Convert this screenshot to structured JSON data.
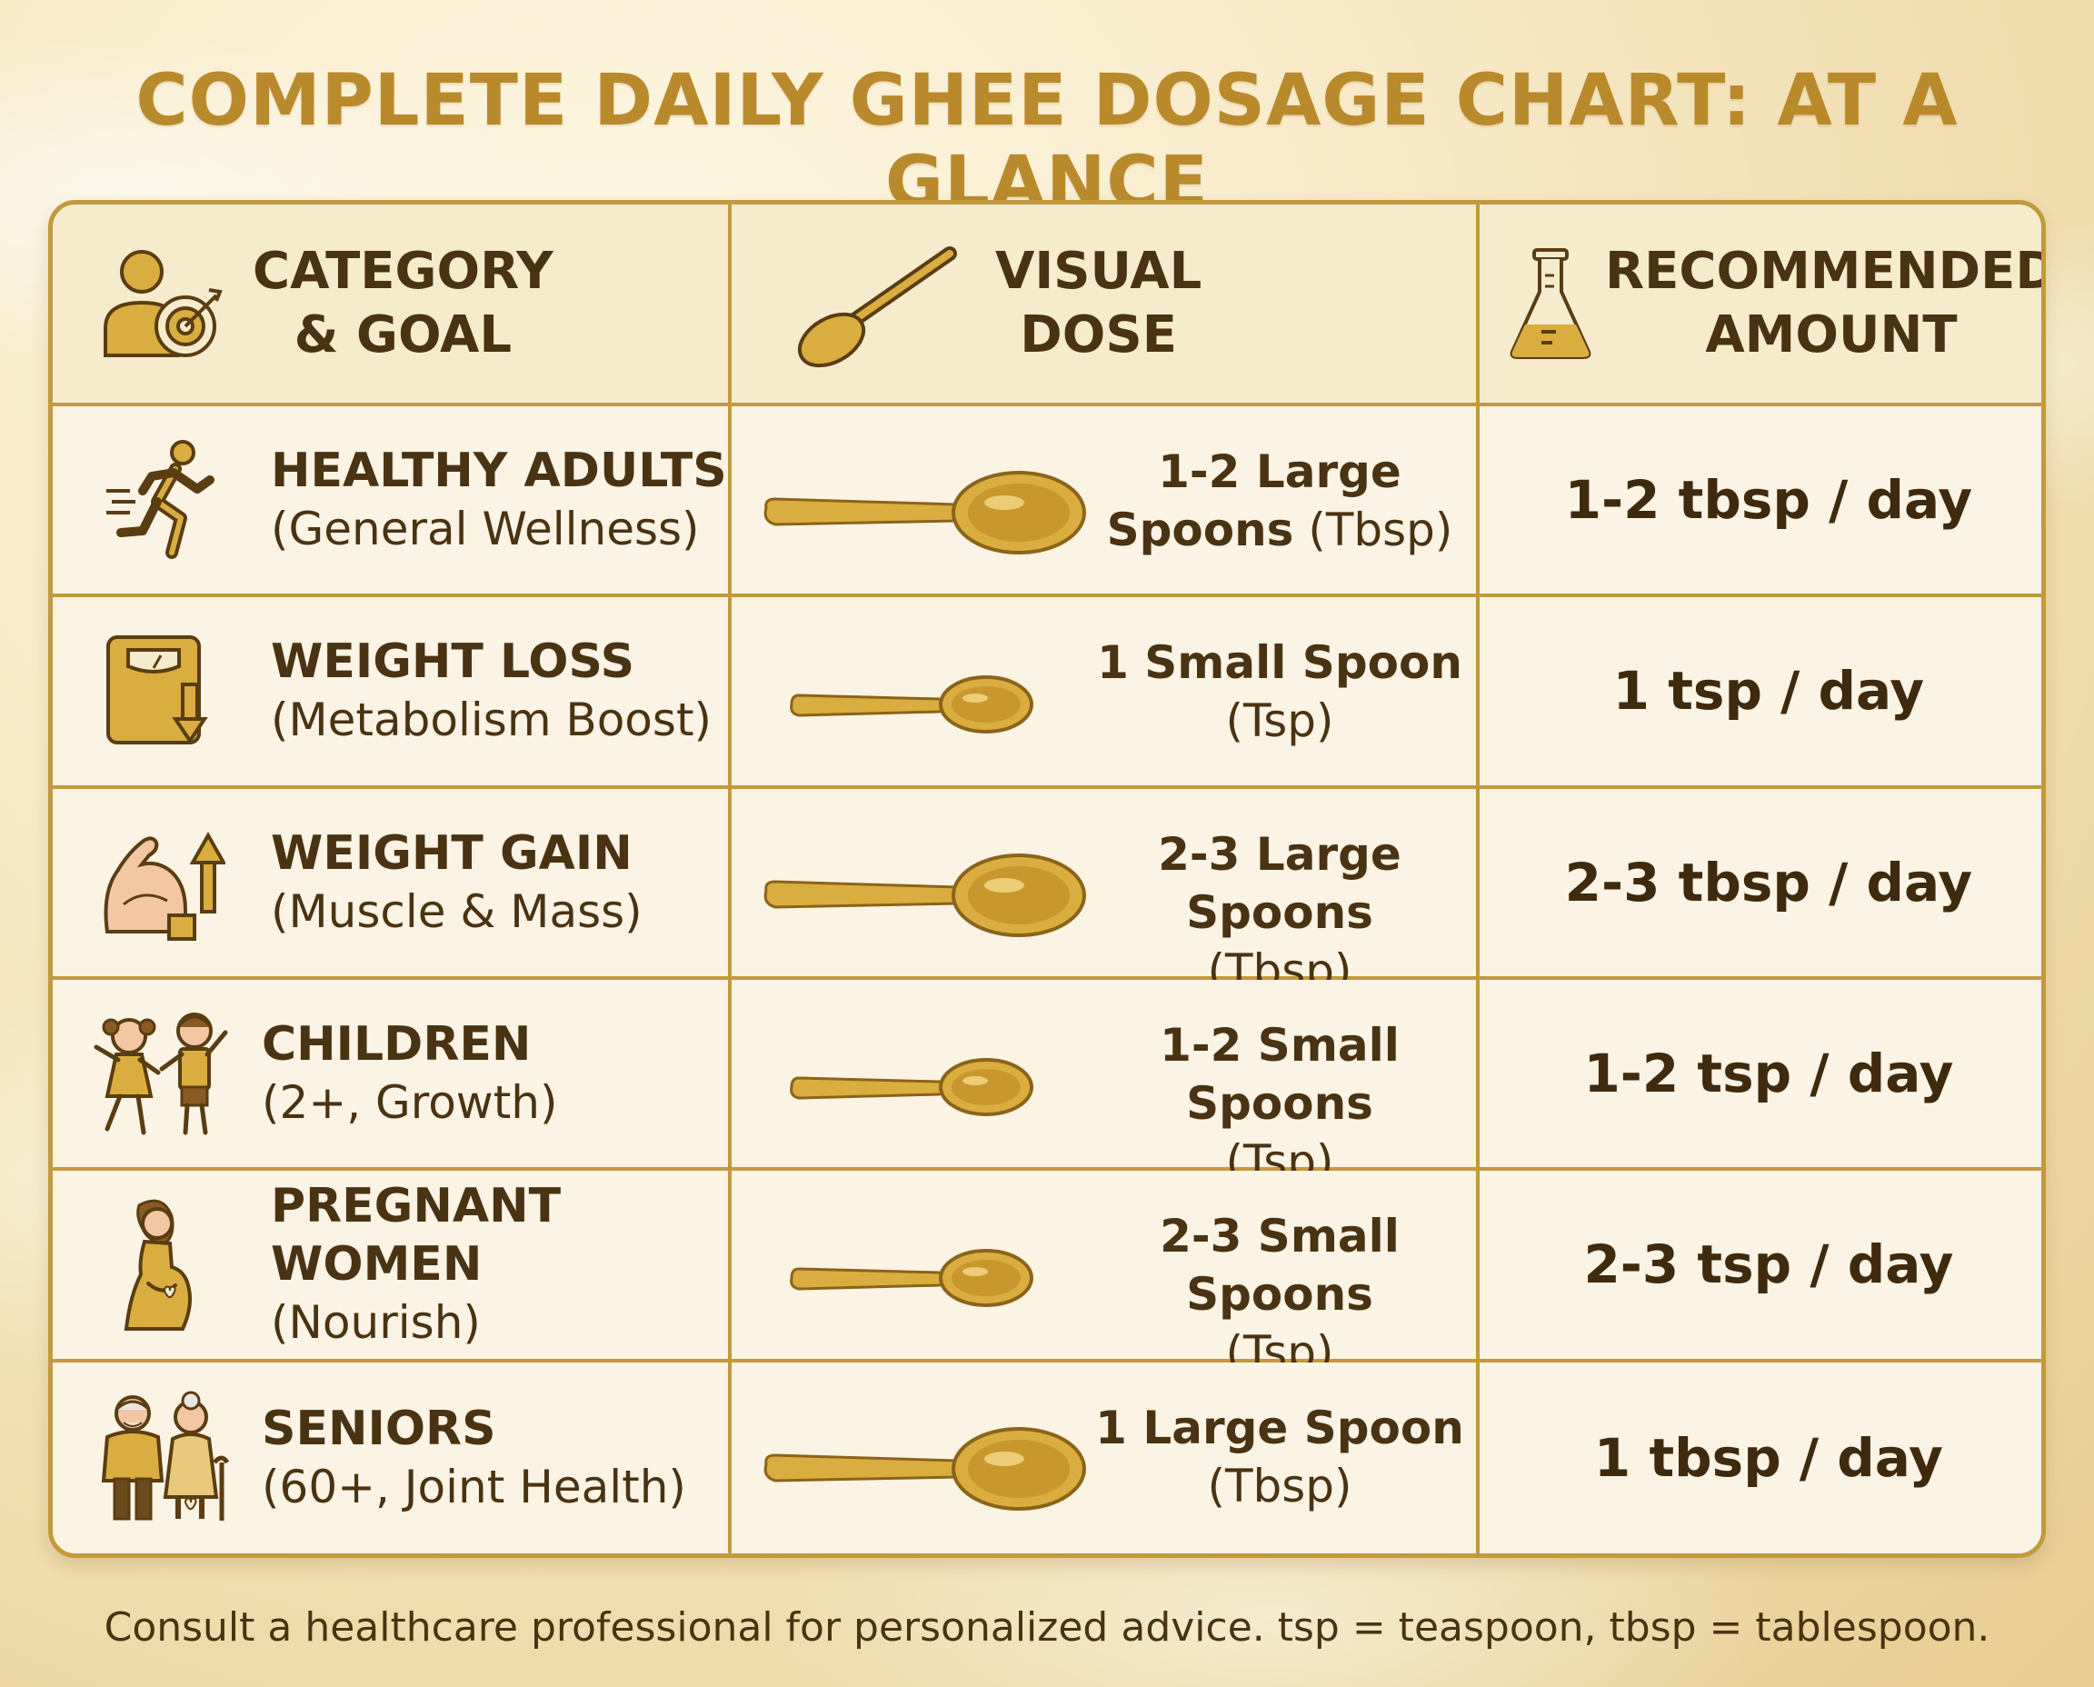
{
  "title": "COMPLETE DAILY GHEE DOSAGE CHART: AT A GLANCE",
  "colors": {
    "gold": "#c29a3d",
    "gold_fill": "#d9ad3f",
    "text_dark": "#4a3312",
    "title": "#b98a2c",
    "cell_bg": "#fbf3e3"
  },
  "headers": {
    "category": {
      "line1": "CATEGORY",
      "line2": "& GOAL",
      "icon": "person-target-icon"
    },
    "visual": {
      "line1": "VISUAL",
      "line2": "DOSE",
      "icon": "spoon-icon"
    },
    "amount": {
      "line1": "RECOMMENDED",
      "line2": "AMOUNT",
      "icon": "flask-icon"
    }
  },
  "rows": [
    {
      "name": "HEALTHY ADULTS",
      "goal": "(General Wellness)",
      "icon": "running-person-icon",
      "spoon": "large",
      "dose_line1": "1-2 Large",
      "dose_line2_bold": "Spoons",
      "dose_line2_rest": " (Tbsp)",
      "amount": "1-2 tbsp / day"
    },
    {
      "name": "WEIGHT LOSS",
      "goal": "(Metabolism Boost)",
      "icon": "scale-down-icon",
      "spoon": "small",
      "dose_line1": "1 Small Spoon",
      "dose_line2_bold": "",
      "dose_line2_rest": "(Tsp)",
      "amount": "1 tsp / day"
    },
    {
      "name": "WEIGHT GAIN",
      "goal": "(Muscle & Mass)",
      "icon": "bicep-up-icon",
      "spoon": "large",
      "dose_line1": "2-3 Large Spoons",
      "dose_line2_bold": "",
      "dose_line2_rest": "(Tbsp)",
      "amount": "2-3 tbsp / day"
    },
    {
      "name": "CHILDREN",
      "goal": "(2+, Growth)",
      "icon": "children-icon",
      "spoon": "small",
      "dose_line1": "1-2 Small Spoons",
      "dose_line2_bold": "",
      "dose_line2_rest": "(Tsp)",
      "amount": "1-2 tsp / day"
    },
    {
      "name": "PREGNANT WOMEN",
      "goal": "(Nourish)",
      "icon": "pregnant-woman-icon",
      "spoon": "small",
      "dose_line1": "2-3 Small Spoons",
      "dose_line2_bold": "",
      "dose_line2_rest": "(Tsp)",
      "amount": "2-3 tsp / day"
    },
    {
      "name": "SENIORS",
      "goal": "(60+, Joint Health)",
      "icon": "seniors-icon",
      "spoon": "large",
      "dose_line1": "1 Large Spoon",
      "dose_line2_bold": "",
      "dose_line2_rest": "(Tbsp)",
      "amount": "1 tbsp / day"
    }
  ],
  "footer": "Consult a healthcare professional for personalized advice. tsp = teaspoon, tbsp = tablespoon."
}
